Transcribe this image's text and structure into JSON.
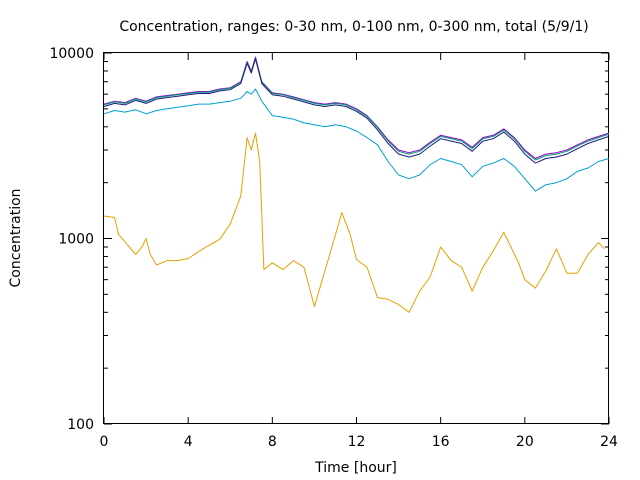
{
  "chart_data": {
    "type": "line",
    "title": "Concentration, ranges: 0-30 nm, 0-100 nm, 0-300 nm, total (5/9/1)",
    "xlabel": "Time [hour]",
    "ylabel": "Concentration",
    "xlim": [
      0,
      24
    ],
    "ylim": [
      100,
      10000
    ],
    "yscale": "log",
    "x_ticks": [
      0,
      4,
      8,
      12,
      16,
      20,
      24
    ],
    "x_tick_labels": [
      "0",
      "4",
      "8",
      "12",
      "16",
      "20",
      "24"
    ],
    "y_ticks": [
      100,
      1000,
      10000
    ],
    "y_tick_labels": [
      "100",
      "1000",
      "10000"
    ],
    "grid": false,
    "legend": "none",
    "series": [
      {
        "color": "#e6a000",
        "points": [
          [
            0,
            1320
          ],
          [
            0.5,
            1300
          ],
          [
            0.7,
            1050
          ],
          [
            1,
            960
          ],
          [
            1.5,
            820
          ],
          [
            1.8,
            900
          ],
          [
            2,
            1000
          ],
          [
            2.2,
            820
          ],
          [
            2.5,
            720
          ],
          [
            3,
            760
          ],
          [
            3.5,
            760
          ],
          [
            4,
            780
          ],
          [
            4.5,
            850
          ],
          [
            5,
            920
          ],
          [
            5.5,
            990
          ],
          [
            6,
            1200
          ],
          [
            6.5,
            1700
          ],
          [
            6.8,
            3500
          ],
          [
            7,
            3000
          ],
          [
            7.2,
            3700
          ],
          [
            7.4,
            2600
          ],
          [
            7.6,
            680
          ],
          [
            8,
            740
          ],
          [
            8.5,
            680
          ],
          [
            9,
            760
          ],
          [
            9.5,
            700
          ],
          [
            10,
            430
          ],
          [
            10.3,
            560
          ],
          [
            10.7,
            800
          ],
          [
            11,
            1050
          ],
          [
            11.3,
            1380
          ],
          [
            11.7,
            1050
          ],
          [
            12,
            770
          ],
          [
            12.5,
            700
          ],
          [
            13,
            480
          ],
          [
            13.5,
            470
          ],
          [
            14,
            440
          ],
          [
            14.5,
            400
          ],
          [
            15,
            520
          ],
          [
            15.5,
            620
          ],
          [
            16,
            900
          ],
          [
            16.5,
            760
          ],
          [
            17,
            700
          ],
          [
            17.5,
            520
          ],
          [
            18,
            700
          ],
          [
            18.5,
            860
          ],
          [
            19,
            1080
          ],
          [
            19.3,
            920
          ],
          [
            19.7,
            740
          ],
          [
            20,
            600
          ],
          [
            20.5,
            540
          ],
          [
            21,
            670
          ],
          [
            21.5,
            880
          ],
          [
            22,
            650
          ],
          [
            22.5,
            650
          ],
          [
            23,
            820
          ],
          [
            23.5,
            950
          ],
          [
            23.8,
            880
          ]
        ]
      },
      {
        "color": "#00a0d0",
        "points": [
          [
            0,
            4700
          ],
          [
            0.5,
            4900
          ],
          [
            1,
            4800
          ],
          [
            1.5,
            4950
          ],
          [
            2,
            4700
          ],
          [
            2.5,
            4900
          ],
          [
            3,
            5000
          ],
          [
            3.5,
            5100
          ],
          [
            4,
            5200
          ],
          [
            4.5,
            5300
          ],
          [
            5,
            5300
          ],
          [
            5.5,
            5400
          ],
          [
            6,
            5500
          ],
          [
            6.5,
            5700
          ],
          [
            6.8,
            6200
          ],
          [
            7,
            6000
          ],
          [
            7.2,
            6400
          ],
          [
            7.5,
            5500
          ],
          [
            8,
            4600
          ],
          [
            8.5,
            4500
          ],
          [
            9,
            4400
          ],
          [
            9.5,
            4200
          ],
          [
            10,
            4100
          ],
          [
            10.5,
            4000
          ],
          [
            11,
            4100
          ],
          [
            11.5,
            4000
          ],
          [
            12,
            3800
          ],
          [
            12.5,
            3500
          ],
          [
            13,
            3200
          ],
          [
            13.5,
            2600
          ],
          [
            14,
            2200
          ],
          [
            14.5,
            2100
          ],
          [
            15,
            2200
          ],
          [
            15.5,
            2500
          ],
          [
            16,
            2700
          ],
          [
            16.5,
            2600
          ],
          [
            17,
            2500
          ],
          [
            17.5,
            2150
          ],
          [
            18,
            2450
          ],
          [
            18.5,
            2550
          ],
          [
            19,
            2700
          ],
          [
            19.5,
            2450
          ],
          [
            20,
            2100
          ],
          [
            20.5,
            1800
          ],
          [
            21,
            1950
          ],
          [
            21.5,
            2000
          ],
          [
            22,
            2100
          ],
          [
            22.5,
            2300
          ],
          [
            23,
            2400
          ],
          [
            23.5,
            2600
          ],
          [
            24,
            2700
          ]
        ]
      },
      {
        "color": "#9400d3",
        "points": [
          [
            0,
            5300
          ],
          [
            0.5,
            5500
          ],
          [
            1,
            5400
          ],
          [
            1.5,
            5700
          ],
          [
            2,
            5500
          ],
          [
            2.5,
            5800
          ],
          [
            3,
            5900
          ],
          [
            3.5,
            6000
          ],
          [
            4,
            6100
          ],
          [
            4.5,
            6200
          ],
          [
            5,
            6200
          ],
          [
            5.5,
            6400
          ],
          [
            6,
            6500
          ],
          [
            6.5,
            7000
          ],
          [
            6.8,
            9000
          ],
          [
            7,
            8000
          ],
          [
            7.2,
            9500
          ],
          [
            7.5,
            7000
          ],
          [
            8,
            6100
          ],
          [
            8.5,
            6000
          ],
          [
            9,
            5800
          ],
          [
            9.5,
            5600
          ],
          [
            10,
            5400
          ],
          [
            10.5,
            5300
          ],
          [
            11,
            5400
          ],
          [
            11.5,
            5300
          ],
          [
            12,
            5000
          ],
          [
            12.5,
            4600
          ],
          [
            13,
            4000
          ],
          [
            13.5,
            3400
          ],
          [
            14,
            3000
          ],
          [
            14.5,
            2900
          ],
          [
            15,
            3000
          ],
          [
            15.5,
            3300
          ],
          [
            16,
            3600
          ],
          [
            16.5,
            3500
          ],
          [
            17,
            3400
          ],
          [
            17.5,
            3100
          ],
          [
            18,
            3500
          ],
          [
            18.5,
            3600
          ],
          [
            19,
            3900
          ],
          [
            19.5,
            3500
          ],
          [
            20,
            3000
          ],
          [
            20.5,
            2700
          ],
          [
            21,
            2850
          ],
          [
            21.5,
            2900
          ],
          [
            22,
            3000
          ],
          [
            22.5,
            3200
          ],
          [
            23,
            3400
          ],
          [
            23.5,
            3550
          ],
          [
            24,
            3700
          ]
        ]
      },
      {
        "color": "#009e73",
        "points": [
          [
            0,
            5250
          ],
          [
            0.5,
            5450
          ],
          [
            1,
            5350
          ],
          [
            1.5,
            5650
          ],
          [
            2,
            5450
          ],
          [
            2.5,
            5750
          ],
          [
            3,
            5850
          ],
          [
            3.5,
            5950
          ],
          [
            4,
            6050
          ],
          [
            4.5,
            6150
          ],
          [
            5,
            6150
          ],
          [
            5.5,
            6350
          ],
          [
            6,
            6450
          ],
          [
            6.5,
            6950
          ],
          [
            6.8,
            8900
          ],
          [
            7,
            7900
          ],
          [
            7.2,
            9400
          ],
          [
            7.5,
            6950
          ],
          [
            8,
            6050
          ],
          [
            8.5,
            5950
          ],
          [
            9,
            5750
          ],
          [
            9.5,
            5550
          ],
          [
            10,
            5350
          ],
          [
            10.5,
            5250
          ],
          [
            11,
            5350
          ],
          [
            11.5,
            5250
          ],
          [
            12,
            4950
          ],
          [
            12.5,
            4550
          ],
          [
            13,
            3950
          ],
          [
            13.5,
            3350
          ],
          [
            14,
            2950
          ],
          [
            14.5,
            2850
          ],
          [
            15,
            2950
          ],
          [
            15.5,
            3250
          ],
          [
            16,
            3550
          ],
          [
            16.5,
            3450
          ],
          [
            17,
            3350
          ],
          [
            17.5,
            3050
          ],
          [
            18,
            3450
          ],
          [
            18.5,
            3550
          ],
          [
            19,
            3850
          ],
          [
            19.5,
            3450
          ],
          [
            20,
            2950
          ],
          [
            20.5,
            2650
          ],
          [
            21,
            2800
          ],
          [
            21.5,
            2850
          ],
          [
            22,
            2950
          ],
          [
            22.5,
            3150
          ],
          [
            23,
            3350
          ],
          [
            23.5,
            3500
          ],
          [
            24,
            3650
          ]
        ]
      },
      {
        "color": "#1a1a80",
        "points": [
          [
            0,
            5150
          ],
          [
            0.5,
            5350
          ],
          [
            1,
            5250
          ],
          [
            1.5,
            5550
          ],
          [
            2,
            5350
          ],
          [
            2.5,
            5650
          ],
          [
            3,
            5750
          ],
          [
            3.5,
            5850
          ],
          [
            4,
            5950
          ],
          [
            4.5,
            6050
          ],
          [
            5,
            6050
          ],
          [
            5.5,
            6250
          ],
          [
            6,
            6350
          ],
          [
            6.5,
            6850
          ],
          [
            6.8,
            8800
          ],
          [
            7,
            7800
          ],
          [
            7.2,
            9300
          ],
          [
            7.5,
            6850
          ],
          [
            8,
            5950
          ],
          [
            8.5,
            5850
          ],
          [
            9,
            5650
          ],
          [
            9.5,
            5450
          ],
          [
            10,
            5250
          ],
          [
            10.5,
            5150
          ],
          [
            11,
            5250
          ],
          [
            11.5,
            5150
          ],
          [
            12,
            4850
          ],
          [
            12.5,
            4450
          ],
          [
            13,
            3850
          ],
          [
            13.5,
            3250
          ],
          [
            14,
            2850
          ],
          [
            14.5,
            2750
          ],
          [
            15,
            2850
          ],
          [
            15.5,
            3150
          ],
          [
            16,
            3450
          ],
          [
            16.5,
            3350
          ],
          [
            17,
            3250
          ],
          [
            17.5,
            2950
          ],
          [
            18,
            3350
          ],
          [
            18.5,
            3450
          ],
          [
            19,
            3750
          ],
          [
            19.5,
            3350
          ],
          [
            20,
            2850
          ],
          [
            20.5,
            2550
          ],
          [
            21,
            2700
          ],
          [
            21.5,
            2750
          ],
          [
            22,
            2850
          ],
          [
            22.5,
            3050
          ],
          [
            23,
            3250
          ],
          [
            23.5,
            3400
          ],
          [
            24,
            3550
          ]
        ]
      }
    ]
  }
}
